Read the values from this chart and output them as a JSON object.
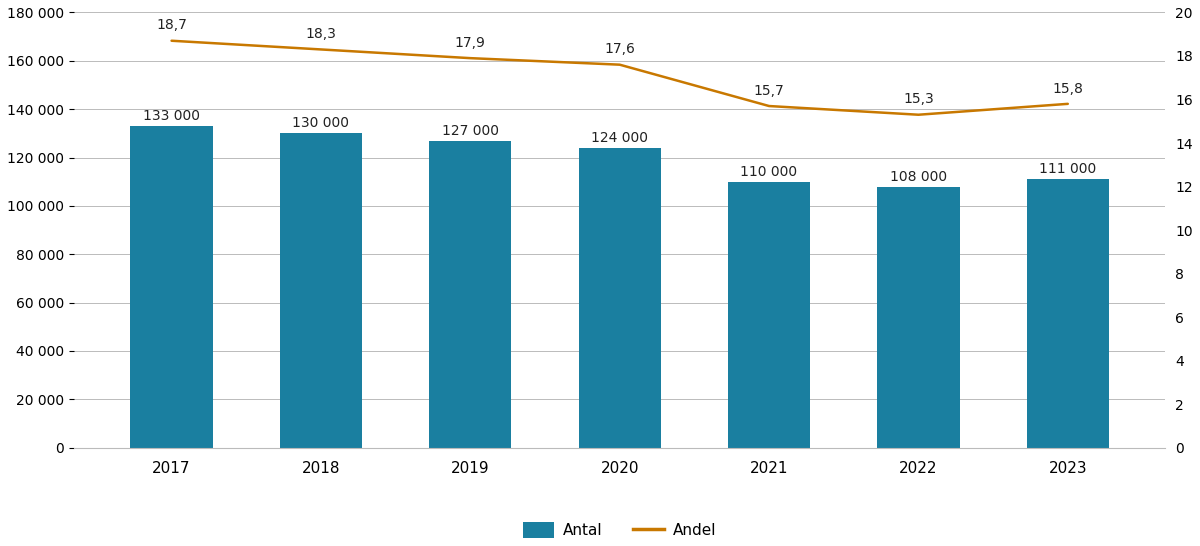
{
  "years": [
    2017,
    2018,
    2019,
    2020,
    2021,
    2022,
    2023
  ],
  "antal": [
    133000,
    130000,
    127000,
    124000,
    110000,
    108000,
    111000
  ],
  "andel": [
    18.7,
    18.3,
    17.9,
    17.6,
    15.7,
    15.3,
    15.8
  ],
  "bar_color": "#1a7fa0",
  "line_color": "#c87800",
  "bar_labels": [
    "133 000",
    "130 000",
    "127 000",
    "124 000",
    "110 000",
    "108 000",
    "111 000"
  ],
  "line_labels": [
    "18,7",
    "18,3",
    "17,9",
    "17,6",
    "15,7",
    "15,3",
    "15,8"
  ],
  "ylim_left": [
    0,
    180000
  ],
  "ylim_right": [
    0,
    20
  ],
  "yticks_left": [
    0,
    20000,
    40000,
    60000,
    80000,
    100000,
    120000,
    140000,
    160000,
    180000
  ],
  "ytick_labels_left": [
    "0",
    "20 000",
    "40 000",
    "60 000",
    "80 000",
    "100 000",
    "120 000",
    "140 000",
    "160 000",
    "180 000"
  ],
  "yticks_right": [
    0,
    2,
    4,
    6,
    8,
    10,
    12,
    14,
    16,
    18,
    20
  ],
  "ytick_labels_right": [
    "0",
    "2",
    "4",
    "6",
    "8",
    "10",
    "12",
    "14",
    "16",
    "18",
    "20"
  ],
  "legend_antal": "Antal",
  "legend_andel": "Andel",
  "bg_color": "#ffffff",
  "grid_color": "#bbbbbb",
  "bar_width": 0.55,
  "figsize": [
    12.0,
    5.46
  ]
}
